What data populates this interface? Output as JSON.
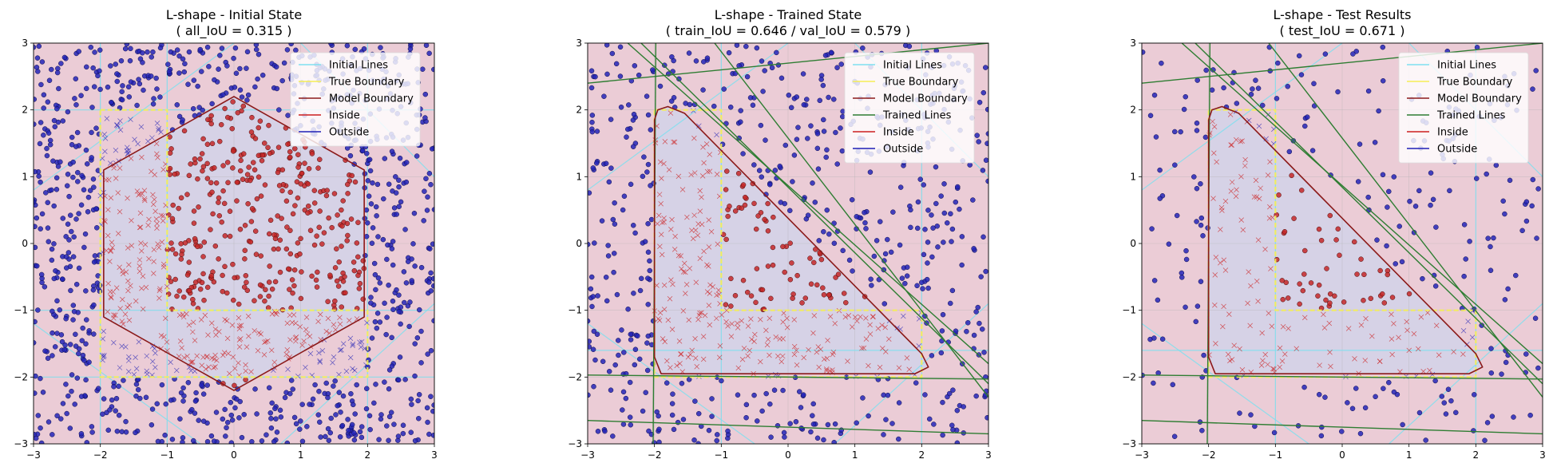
{
  "chart_data": [
    {
      "type": "scatter",
      "title": "L-shape - Initial State",
      "subtitle": "( all_IoU = 0.315 )",
      "xlim": [
        -3,
        3
      ],
      "ylim": [
        -3,
        3
      ],
      "xticks": [
        -3,
        -2,
        -1,
        0,
        1,
        2,
        3
      ],
      "yticks": [
        -3,
        -2,
        -1,
        0,
        1,
        2,
        3
      ],
      "grid": true,
      "legend_position": "upper-right",
      "legend": [
        "Initial Lines",
        "True Boundary",
        "Model Boundary",
        "Inside",
        "Outside"
      ],
      "true_boundary": [
        [
          -2,
          2
        ],
        [
          -1,
          2
        ],
        [
          -1,
          -1
        ],
        [
          2,
          -1
        ],
        [
          2,
          -2
        ],
        [
          -2,
          -2
        ]
      ],
      "model_boundary": [
        [
          0,
          2.2
        ],
        [
          1.95,
          1.1
        ],
        [
          1.95,
          -1.1
        ],
        [
          0,
          -2.2
        ],
        [
          -1.95,
          -1.1
        ],
        [
          -1.95,
          1.1
        ]
      ],
      "initial_lines": [
        [
          [
            -2,
            -3
          ],
          [
            -2,
            3
          ]
        ],
        [
          [
            -1,
            -3
          ],
          [
            -1,
            3
          ]
        ],
        [
          [
            2,
            -3
          ],
          [
            2,
            3
          ]
        ],
        [
          [
            -3,
            2
          ],
          [
            3,
            2
          ]
        ],
        [
          [
            -3,
            -1
          ],
          [
            3,
            -1
          ]
        ],
        [
          [
            -3,
            -2
          ],
          [
            3,
            -2
          ]
        ],
        [
          [
            -3,
            0.8
          ],
          [
            0,
            3
          ]
        ],
        [
          [
            1,
            3
          ],
          [
            3,
            1
          ]
        ],
        [
          [
            -3,
            -1.2
          ],
          [
            -0.5,
            -3
          ]
        ],
        [
          [
            0.7,
            -3
          ],
          [
            3,
            -0.9
          ]
        ]
      ],
      "trained_lines": [],
      "point_count": 1500,
      "point_density": 1.0
    },
    {
      "type": "scatter",
      "title": "L-shape - Trained State",
      "subtitle": "( train_IoU = 0.646 / val_IoU = 0.579 )",
      "xlim": [
        -3,
        3
      ],
      "ylim": [
        -3,
        3
      ],
      "xticks": [
        -3,
        -2,
        -1,
        0,
        1,
        2,
        3
      ],
      "yticks": [
        -3,
        -2,
        -1,
        0,
        1,
        2,
        3
      ],
      "grid": true,
      "legend_position": "upper-right",
      "legend": [
        "Initial Lines",
        "True Boundary",
        "Model Boundary",
        "Trained Lines",
        "Inside",
        "Outside"
      ],
      "true_boundary": [
        [
          -2,
          2
        ],
        [
          -1,
          2
        ],
        [
          -1,
          -1
        ],
        [
          2,
          -1
        ],
        [
          2,
          -2
        ],
        [
          -2,
          -2
        ]
      ],
      "model_boundary": [
        [
          -1.95,
          2.0
        ],
        [
          -1.8,
          2.05
        ],
        [
          -1.55,
          1.95
        ],
        [
          2.0,
          -1.65
        ],
        [
          2.1,
          -1.85
        ],
        [
          1.9,
          -1.95
        ],
        [
          -1.9,
          -1.95
        ],
        [
          -2.0,
          -1.7
        ],
        [
          -2.0,
          1.85
        ]
      ],
      "initial_lines": [
        [
          [
            -1,
            -3
          ],
          [
            -1,
            3
          ]
        ],
        [
          [
            2,
            -3
          ],
          [
            2,
            3
          ]
        ],
        [
          [
            -3,
            0.8
          ],
          [
            0,
            3
          ]
        ],
        [
          [
            1,
            3
          ],
          [
            3,
            1
          ]
        ],
        [
          [
            -3,
            -1.2
          ],
          [
            -0.5,
            -3
          ]
        ],
        [
          [
            0.7,
            -3
          ],
          [
            3,
            -0.9
          ]
        ],
        [
          [
            -3,
            -1.6
          ],
          [
            3,
            -1.6
          ]
        ]
      ],
      "trained_lines": [
        [
          [
            -2.02,
            -3
          ],
          [
            -1.98,
            3
          ]
        ],
        [
          [
            -3,
            -1.97
          ],
          [
            3,
            -2.03
          ]
        ],
        [
          [
            -3,
            2.4
          ],
          [
            3,
            3
          ]
        ],
        [
          [
            -3,
            -2.65
          ],
          [
            3,
            -2.85
          ]
        ],
        [
          [
            -2.2,
            3
          ],
          [
            3,
            -2.1
          ]
        ],
        [
          [
            -2.4,
            3
          ],
          [
            3,
            -1.8
          ]
        ],
        [
          [
            -1.1,
            3
          ],
          [
            3,
            -2.3
          ]
        ]
      ],
      "point_count": 1000,
      "point_density": 0.8
    },
    {
      "type": "scatter",
      "title": "L-shape - Test Results",
      "subtitle": "( test_IoU = 0.671 )",
      "xlim": [
        -3,
        3
      ],
      "ylim": [
        -3,
        3
      ],
      "xticks": [
        -3,
        -2,
        -1,
        0,
        1,
        2,
        3
      ],
      "yticks": [
        -3,
        -2,
        -1,
        0,
        1,
        2,
        3
      ],
      "grid": true,
      "legend_position": "upper-right",
      "legend": [
        "Initial Lines",
        "True Boundary",
        "Model Boundary",
        "Trained Lines",
        "Inside",
        "Outside"
      ],
      "true_boundary": [
        [
          -2,
          2
        ],
        [
          -1,
          2
        ],
        [
          -1,
          -1
        ],
        [
          2,
          -1
        ],
        [
          2,
          -2
        ],
        [
          -2,
          -2
        ]
      ],
      "model_boundary": [
        [
          -1.95,
          2.0
        ],
        [
          -1.8,
          2.05
        ],
        [
          -1.55,
          1.95
        ],
        [
          2.0,
          -1.65
        ],
        [
          2.1,
          -1.85
        ],
        [
          1.9,
          -1.95
        ],
        [
          -1.9,
          -1.95
        ],
        [
          -2.0,
          -1.7
        ],
        [
          -2.0,
          1.85
        ]
      ],
      "initial_lines": [
        [
          [
            -1,
            -3
          ],
          [
            -1,
            3
          ]
        ],
        [
          [
            2,
            -3
          ],
          [
            2,
            3
          ]
        ],
        [
          [
            -3,
            0.8
          ],
          [
            0,
            3
          ]
        ],
        [
          [
            1,
            3
          ],
          [
            3,
            1
          ]
        ],
        [
          [
            -3,
            -1.2
          ],
          [
            -0.5,
            -3
          ]
        ],
        [
          [
            0.7,
            -3
          ],
          [
            3,
            -0.9
          ]
        ],
        [
          [
            -3,
            -1.6
          ],
          [
            3,
            -1.6
          ]
        ]
      ],
      "trained_lines": [
        [
          [
            -2.02,
            -3
          ],
          [
            -1.98,
            3
          ]
        ],
        [
          [
            -3,
            -1.97
          ],
          [
            3,
            -2.03
          ]
        ],
        [
          [
            -3,
            2.4
          ],
          [
            3,
            3
          ]
        ],
        [
          [
            -3,
            -2.65
          ],
          [
            3,
            -2.85
          ]
        ],
        [
          [
            -2.2,
            3
          ],
          [
            3,
            -2.1
          ]
        ],
        [
          [
            -2.4,
            3
          ],
          [
            3,
            -1.8
          ]
        ],
        [
          [
            -1.1,
            3
          ],
          [
            3,
            -2.3
          ]
        ]
      ],
      "point_count": 700,
      "point_density": 0.45
    }
  ],
  "colors": {
    "inside_region": "#d6d2e6",
    "outside_region": "#ebccd6",
    "initial_lines": "#7fdfef",
    "true_boundary": "#f5ee55",
    "model_boundary": "#8b1a1a",
    "trained_lines": "#2e7d32",
    "inside": "#cc1f1f",
    "outside": "#1f1fb5",
    "point_outside_face": "#2424b8",
    "point_inside_face": "#c62828"
  }
}
